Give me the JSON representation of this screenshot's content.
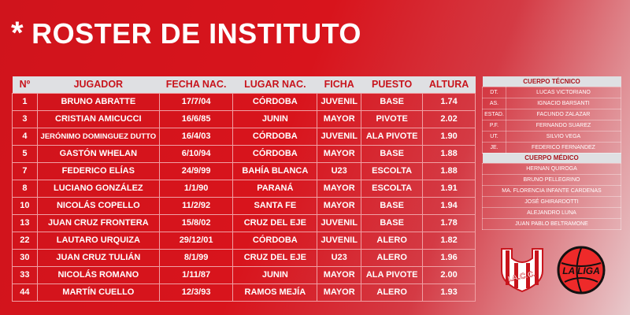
{
  "title": "ROSTER DE INSTITUTO",
  "title_icon": "asterisk",
  "roster": {
    "headers": [
      "Nº",
      "JUGADOR",
      "FECHA NAC.",
      "LUGAR NAC.",
      "FICHA",
      "PUESTO",
      "ALTURA"
    ],
    "rows": [
      [
        "1",
        "BRUNO ABRATTE",
        "17/7/04",
        "CÓRDOBA",
        "JUVENIL",
        "BASE",
        "1.74"
      ],
      [
        "3",
        "CRISTIAN AMICUCCI",
        "16/6/85",
        "JUNIN",
        "MAYOR",
        "PIVOTE",
        "2.02"
      ],
      [
        "4",
        "JERÓNIMO DOMINGUEZ DUTTO",
        "16/4/03",
        "CÓRDOBA",
        "JUVENIL",
        "ALA PIVOTE",
        "1.90"
      ],
      [
        "5",
        "GASTÓN WHELAN",
        "6/10/94",
        "CÓRDOBA",
        "MAYOR",
        "BASE",
        "1.88"
      ],
      [
        "7",
        "FEDERICO ELÍAS",
        "24/9/99",
        "BAHÍA BLANCA",
        "U23",
        "ESCOLTA",
        "1.88"
      ],
      [
        "8",
        "LUCIANO GONZÁLEZ",
        "1/1/90",
        "PARANÁ",
        "MAYOR",
        "ESCOLTA",
        "1.91"
      ],
      [
        "10",
        "NICOLÁS COPELLO",
        "11/2/92",
        "SANTA FE",
        "MAYOR",
        "BASE",
        "1.94"
      ],
      [
        "13",
        "JUAN CRUZ FRONTERA",
        "15/8/02",
        "CRUZ DEL EJE",
        "JUVENIL",
        "BASE",
        "1.78"
      ],
      [
        "22",
        "LAUTARO URQUIZA",
        "29/12/01",
        "CÓRDOBA",
        "JUVENIL",
        "ALERO",
        "1.82"
      ],
      [
        "30",
        "JUAN CRUZ TULIÁN",
        "8/1/99",
        "CRUZ DEL EJE",
        "U23",
        "ALERO",
        "1.96"
      ],
      [
        "33",
        "NICOLÁS ROMANO",
        "1/11/87",
        "JUNIN",
        "MAYOR",
        "ALA PIVOTE",
        "2.00"
      ],
      [
        "44",
        "MARTÍN CUELLO",
        "12/3/93",
        "RAMOS MEJÍA",
        "MAYOR",
        "ALERO",
        "1.93"
      ]
    ]
  },
  "staff": {
    "tecnico_title": "CUERPO TÉCNICO",
    "tecnico": [
      [
        "DT.",
        "LUCAS VICTORIANO"
      ],
      [
        "AS.",
        "IGNACIO BARSANTI"
      ],
      [
        "ESTAD.",
        "FACUNDO ZALAZAR"
      ],
      [
        "P.F.",
        "FERNANDO SUAREZ"
      ],
      [
        "UT.",
        "SILVIO VEGA"
      ],
      [
        "JE.",
        "FEDERICO FERNANDEZ"
      ]
    ],
    "medico_title": "CUERPO MÉDICO",
    "medico": [
      "HERNAN QUIROGA",
      "BRUNO PELLEGRINO",
      "MA. FLORENCIA INFANTE CARDENAS",
      "JOSÉ GHIRARDOTTI",
      "ALEJANDRO LUNA",
      "JUAN PABLO BELTRAMONE"
    ]
  },
  "logos": {
    "club": "I.A.C.C.",
    "league": "LA LIGA"
  },
  "colors": {
    "red": "#d0141c",
    "header_bg": "#dfe0e3",
    "header_text": "#c8141c"
  }
}
